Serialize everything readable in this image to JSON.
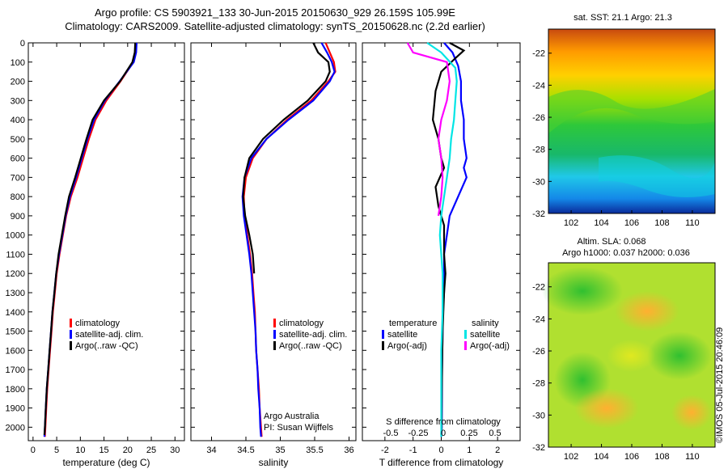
{
  "header": {
    "line1": "Argo profile: CS 5903921_133 30-Jun-2015 20150630_929 26.159S 105.99E",
    "line2": "Climatology: CARS2009. Satellite-adjusted climatology: synTS_20150628.nc (2.2d earlier)"
  },
  "colors": {
    "climatology": "#ff0000",
    "satellite": "#0000ff",
    "argo": "#000000",
    "sal_satellite": "#00e5e5",
    "sal_argo": "#ff00ff"
  },
  "chart_data": [
    {
      "type": "line",
      "name": "temperature-panel",
      "xlabel": "temperature (deg C)",
      "ylabel": "",
      "xlim": [
        -1,
        32
      ],
      "ylim": [
        0,
        2070
      ],
      "y_reversed": true,
      "xticks": [
        0,
        5,
        10,
        15,
        20,
        25,
        30
      ],
      "yticks": [
        0,
        100,
        200,
        300,
        400,
        500,
        600,
        700,
        800,
        900,
        1000,
        1100,
        1200,
        1300,
        1400,
        1500,
        1600,
        1700,
        1800,
        1900,
        2000
      ],
      "legend": {
        "position": "lower-center",
        "entries": [
          "climatology",
          "satellite-adj. clim.",
          "Argo(..raw -QC)"
        ]
      },
      "series": [
        {
          "name": "climatology",
          "color": "#ff0000",
          "points": [
            [
              21.8,
              0
            ],
            [
              21.7,
              50
            ],
            [
              21.2,
              100
            ],
            [
              18.5,
              200
            ],
            [
              15.5,
              300
            ],
            [
              13.2,
              400
            ],
            [
              11.8,
              500
            ],
            [
              10.6,
              600
            ],
            [
              9.4,
              700
            ],
            [
              8.0,
              800
            ],
            [
              7.0,
              900
            ],
            [
              6.3,
              1000
            ],
            [
              5.6,
              1100
            ],
            [
              5.0,
              1200
            ],
            [
              4.6,
              1300
            ],
            [
              4.2,
              1400
            ],
            [
              3.9,
              1500
            ],
            [
              3.6,
              1600
            ],
            [
              3.3,
              1700
            ],
            [
              3.0,
              1800
            ],
            [
              2.8,
              1900
            ],
            [
              2.6,
              2000
            ],
            [
              2.5,
              2050
            ]
          ]
        },
        {
          "name": "satellite-adj. clim.",
          "color": "#0000ff",
          "points": [
            [
              21.9,
              0
            ],
            [
              21.8,
              50
            ],
            [
              21.3,
              100
            ],
            [
              18.3,
              200
            ],
            [
              15.2,
              300
            ],
            [
              12.9,
              400
            ],
            [
              11.5,
              500
            ],
            [
              10.3,
              600
            ],
            [
              9.1,
              700
            ],
            [
              7.8,
              800
            ],
            [
              6.9,
              900
            ],
            [
              6.2,
              1000
            ],
            [
              5.5,
              1100
            ],
            [
              4.9,
              1200
            ],
            [
              4.5,
              1300
            ],
            [
              4.1,
              1400
            ],
            [
              3.8,
              1500
            ],
            [
              3.5,
              1600
            ],
            [
              3.2,
              1700
            ],
            [
              2.9,
              1800
            ],
            [
              2.7,
              1900
            ],
            [
              2.5,
              2000
            ],
            [
              2.4,
              2050
            ]
          ]
        },
        {
          "name": "Argo(..raw -QC)",
          "color": "#000000",
          "points": [
            [
              21.6,
              0
            ],
            [
              21.5,
              50
            ],
            [
              21.0,
              100
            ],
            [
              18.4,
              200
            ],
            [
              15.0,
              300
            ],
            [
              12.6,
              400
            ],
            [
              11.3,
              500
            ],
            [
              10.1,
              600
            ],
            [
              8.9,
              700
            ],
            [
              7.6,
              800
            ],
            [
              6.8,
              900
            ],
            [
              6.1,
              1000
            ],
            [
              5.4,
              1100
            ],
            [
              4.9,
              1200
            ],
            [
              4.5,
              1300
            ],
            [
              4.1,
              1400
            ],
            [
              3.8,
              1500
            ],
            [
              3.5,
              1600
            ],
            [
              3.2,
              1700
            ],
            [
              2.9,
              1800
            ],
            [
              2.7,
              1900
            ],
            [
              2.5,
              2000
            ],
            [
              2.4,
              2040
            ]
          ]
        }
      ]
    },
    {
      "type": "line",
      "name": "salinity-panel",
      "xlabel": "salinity",
      "ylabel": "",
      "xlim": [
        33.7,
        36.1
      ],
      "ylim": [
        0,
        2070
      ],
      "y_reversed": true,
      "xticks": [
        34,
        34.5,
        35,
        35.5,
        36
      ],
      "legend": {
        "position": "lower-center",
        "entries": [
          "climatology",
          "satellite-adj. clim.",
          "Argo(..raw -QC)"
        ]
      },
      "annotation": [
        "Argo Australia",
        "PI: Susan Wijffels"
      ],
      "series": [
        {
          "name": "climatology",
          "color": "#ff0000",
          "points": [
            [
              35.66,
              0
            ],
            [
              35.72,
              50
            ],
            [
              35.78,
              100
            ],
            [
              35.8,
              150
            ],
            [
              35.7,
              200
            ],
            [
              35.45,
              300
            ],
            [
              35.1,
              400
            ],
            [
              34.8,
              500
            ],
            [
              34.6,
              600
            ],
            [
              34.5,
              700
            ],
            [
              34.47,
              800
            ],
            [
              34.48,
              900
            ],
            [
              34.52,
              1000
            ],
            [
              34.56,
              1100
            ],
            [
              34.59,
              1200
            ],
            [
              34.61,
              1300
            ],
            [
              34.63,
              1400
            ],
            [
              34.64,
              1500
            ],
            [
              34.65,
              1600
            ],
            [
              34.67,
              1700
            ],
            [
              34.69,
              1800
            ],
            [
              34.7,
              1900
            ],
            [
              34.72,
              2000
            ],
            [
              34.73,
              2050
            ]
          ]
        },
        {
          "name": "satellite-adj. clim.",
          "color": "#0000ff",
          "points": [
            [
              35.6,
              0
            ],
            [
              35.68,
              50
            ],
            [
              35.75,
              100
            ],
            [
              35.79,
              150
            ],
            [
              35.72,
              200
            ],
            [
              35.48,
              300
            ],
            [
              35.12,
              400
            ],
            [
              34.8,
              500
            ],
            [
              34.58,
              600
            ],
            [
              34.48,
              700
            ],
            [
              34.45,
              800
            ],
            [
              34.47,
              900
            ],
            [
              34.51,
              1000
            ],
            [
              34.55,
              1100
            ],
            [
              34.58,
              1200
            ],
            [
              34.6,
              1300
            ],
            [
              34.62,
              1400
            ],
            [
              34.64,
              1500
            ],
            [
              34.65,
              1600
            ],
            [
              34.67,
              1700
            ],
            [
              34.68,
              1800
            ],
            [
              34.7,
              1900
            ],
            [
              34.71,
              2000
            ],
            [
              34.72,
              2050
            ]
          ]
        },
        {
          "name": "Argo(..raw -QC)",
          "color": "#000000",
          "points": [
            [
              35.48,
              0
            ],
            [
              35.55,
              50
            ],
            [
              35.7,
              100
            ],
            [
              35.72,
              150
            ],
            [
              35.66,
              200
            ],
            [
              35.4,
              300
            ],
            [
              35.05,
              400
            ],
            [
              34.75,
              500
            ],
            [
              34.55,
              600
            ],
            [
              34.48,
              700
            ],
            [
              34.46,
              800
            ],
            [
              34.49,
              900
            ],
            [
              34.55,
              1000
            ],
            [
              34.6,
              1100
            ],
            [
              34.62,
              1200
            ]
          ]
        }
      ]
    },
    {
      "type": "line",
      "name": "difference-panel",
      "xlabel": "T difference from climatology",
      "xlabel_top": "S difference from climatology",
      "xlim": [
        -2.8,
        2.8
      ],
      "ylim": [
        0,
        2070
      ],
      "y_reversed": true,
      "xticks": [
        -2,
        -1,
        0,
        1,
        2
      ],
      "xticks_salinity": [
        "-0.5",
        "-0.25",
        "0",
        "0.25",
        "0.5"
      ],
      "legend": {
        "position": "lower-center",
        "headers": [
          "temperature",
          "salinity"
        ],
        "entries": [
          "satellite",
          "Argo(-adj)",
          "satellite",
          "Argo(-adj)"
        ]
      },
      "series": [
        {
          "name": "temperature satellite",
          "color": "#0000ff",
          "points": [
            [
              0.1,
              0
            ],
            [
              0.4,
              50
            ],
            [
              0.6,
              120
            ],
            [
              0.7,
              200
            ],
            [
              0.7,
              300
            ],
            [
              0.8,
              400
            ],
            [
              0.8,
              500
            ],
            [
              0.9,
              600
            ],
            [
              0.8,
              650
            ],
            [
              0.9,
              700
            ],
            [
              0.6,
              800
            ],
            [
              0.3,
              900
            ],
            [
              0.2,
              1000
            ],
            [
              0.1,
              1100
            ],
            [
              0.1,
              1200
            ],
            [
              0.1,
              1300
            ],
            [
              0.05,
              1400
            ],
            [
              0.05,
              1500
            ],
            [
              0.03,
              1700
            ],
            [
              0.02,
              2000
            ],
            [
              0.0,
              2050
            ]
          ]
        },
        {
          "name": "temperature Argo(-adj)",
          "color": "#000000",
          "points": [
            [
              0.3,
              0
            ],
            [
              0.8,
              40
            ],
            [
              0.5,
              80
            ],
            [
              0.0,
              150
            ],
            [
              -0.2,
              250
            ],
            [
              -0.3,
              400
            ],
            [
              -0.1,
              500
            ],
            [
              0.0,
              600
            ],
            [
              0.1,
              650
            ],
            [
              -0.2,
              750
            ],
            [
              -0.1,
              850
            ],
            [
              0.1,
              950
            ],
            [
              0.1,
              1100
            ],
            [
              0.15,
              1200
            ],
            [
              0.1,
              1300
            ],
            [
              0.05,
              1500
            ],
            [
              0.02,
              1800
            ],
            [
              0.01,
              2000
            ],
            [
              0.0,
              2040
            ]
          ]
        },
        {
          "name": "salinity satellite",
          "color": "#00e5e5",
          "points": [
            [
              -0.5,
              0
            ],
            [
              0.0,
              50
            ],
            [
              0.5,
              130
            ],
            [
              0.55,
              200
            ],
            [
              0.5,
              300
            ],
            [
              0.45,
              400
            ],
            [
              0.35,
              500
            ],
            [
              0.3,
              600
            ],
            [
              0.2,
              700
            ],
            [
              0.1,
              800
            ],
            [
              0.0,
              900
            ],
            [
              -0.05,
              1000
            ],
            [
              0.0,
              1100
            ],
            [
              0.05,
              1200
            ],
            [
              0.05,
              1400
            ],
            [
              0.0,
              1600
            ],
            [
              0.0,
              1800
            ],
            [
              0.0,
              2050
            ]
          ]
        },
        {
          "name": "salinity Argo(-adj)",
          "color": "#ff00ff",
          "points": [
            [
              -1.2,
              0
            ],
            [
              -1.0,
              50
            ],
            [
              0.2,
              100
            ],
            [
              0.3,
              200
            ],
            [
              0.2,
              300
            ],
            [
              0.0,
              400
            ],
            [
              -0.1,
              500
            ],
            [
              0.0,
              600
            ],
            [
              0.05,
              700
            ],
            [
              0.0,
              800
            ],
            [
              -0.1,
              900
            ]
          ]
        }
      ]
    },
    {
      "type": "heatmap",
      "name": "sst-map",
      "title": "sat. SST: 21.1  Argo: 21.3",
      "xticks": [
        102,
        104,
        106,
        108,
        110
      ],
      "yticks": [
        -22,
        -24,
        -26,
        -28,
        -30,
        -32
      ],
      "xlim": [
        100.5,
        111.5
      ],
      "ylim": [
        -32,
        -20.5
      ]
    },
    {
      "type": "heatmap",
      "name": "sla-map",
      "title_line1": "Altim. SLA: 0.068",
      "title_line2": "Argo h1000: 0.037 h2000: 0.036",
      "xticks": [
        102,
        104,
        106,
        108,
        110
      ],
      "yticks": [
        -22,
        -24,
        -26,
        -28,
        -30,
        -32
      ],
      "xlim": [
        100.5,
        111.5
      ],
      "ylim": [
        -32,
        -20.5
      ]
    }
  ],
  "watermark": "©IMOS 05-Jul-2015 20:46:09"
}
